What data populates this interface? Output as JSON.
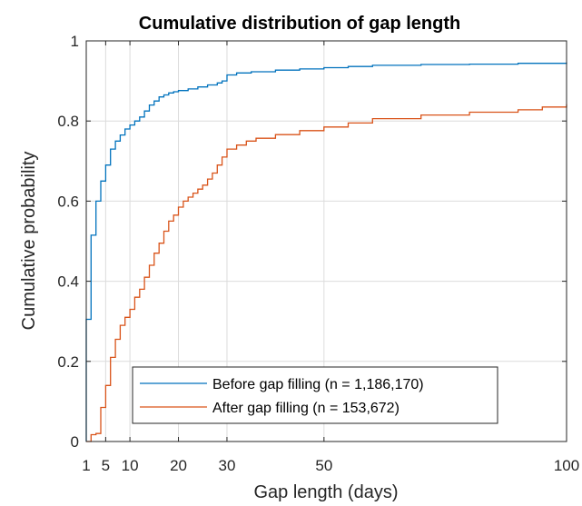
{
  "chart_data": {
    "type": "line",
    "title": "Cumulative distribution of gap length",
    "xlabel": "Gap length (days)",
    "ylabel": "Cumulative probability",
    "xlim": [
      1,
      100
    ],
    "ylim": [
      0,
      1
    ],
    "xticks": [
      1,
      5,
      10,
      20,
      30,
      50,
      100
    ],
    "yticks": [
      0,
      0.2,
      0.4,
      0.6,
      0.8,
      1
    ],
    "grid": true,
    "legend_position": "bottom-right",
    "series": [
      {
        "name": "Before gap filling (n = 1,186,170)",
        "color": "#0072BD",
        "x": [
          1,
          2,
          3,
          4,
          5,
          6,
          7,
          8,
          9,
          10,
          11,
          12,
          13,
          14,
          15,
          16,
          17,
          18,
          19,
          20,
          22,
          24,
          26,
          28,
          29,
          30,
          32,
          35,
          40,
          45,
          50,
          55,
          60,
          70,
          80,
          90,
          100
        ],
        "y": [
          0.305,
          0.515,
          0.6,
          0.65,
          0.69,
          0.73,
          0.75,
          0.765,
          0.78,
          0.79,
          0.8,
          0.81,
          0.825,
          0.84,
          0.85,
          0.86,
          0.865,
          0.87,
          0.873,
          0.876,
          0.88,
          0.885,
          0.89,
          0.895,
          0.9,
          0.915,
          0.92,
          0.923,
          0.927,
          0.93,
          0.933,
          0.936,
          0.939,
          0.941,
          0.942,
          0.944,
          0.946
        ]
      },
      {
        "name": "After gap filling (n = 153,672)",
        "color": "#D95319",
        "x": [
          1,
          2,
          3,
          4,
          5,
          6,
          7,
          8,
          9,
          10,
          11,
          12,
          13,
          14,
          15,
          16,
          17,
          18,
          19,
          20,
          21,
          22,
          23,
          24,
          25,
          26,
          27,
          28,
          29,
          30,
          32,
          34,
          36,
          40,
          45,
          50,
          55,
          60,
          70,
          80,
          90,
          95,
          100
        ],
        "y": [
          0.0,
          0.017,
          0.02,
          0.085,
          0.14,
          0.21,
          0.255,
          0.29,
          0.31,
          0.33,
          0.36,
          0.38,
          0.41,
          0.44,
          0.47,
          0.495,
          0.525,
          0.55,
          0.565,
          0.585,
          0.6,
          0.61,
          0.62,
          0.63,
          0.64,
          0.655,
          0.67,
          0.69,
          0.71,
          0.73,
          0.74,
          0.75,
          0.757,
          0.766,
          0.776,
          0.785,
          0.795,
          0.806,
          0.815,
          0.822,
          0.828,
          0.835,
          0.842
        ]
      }
    ]
  }
}
